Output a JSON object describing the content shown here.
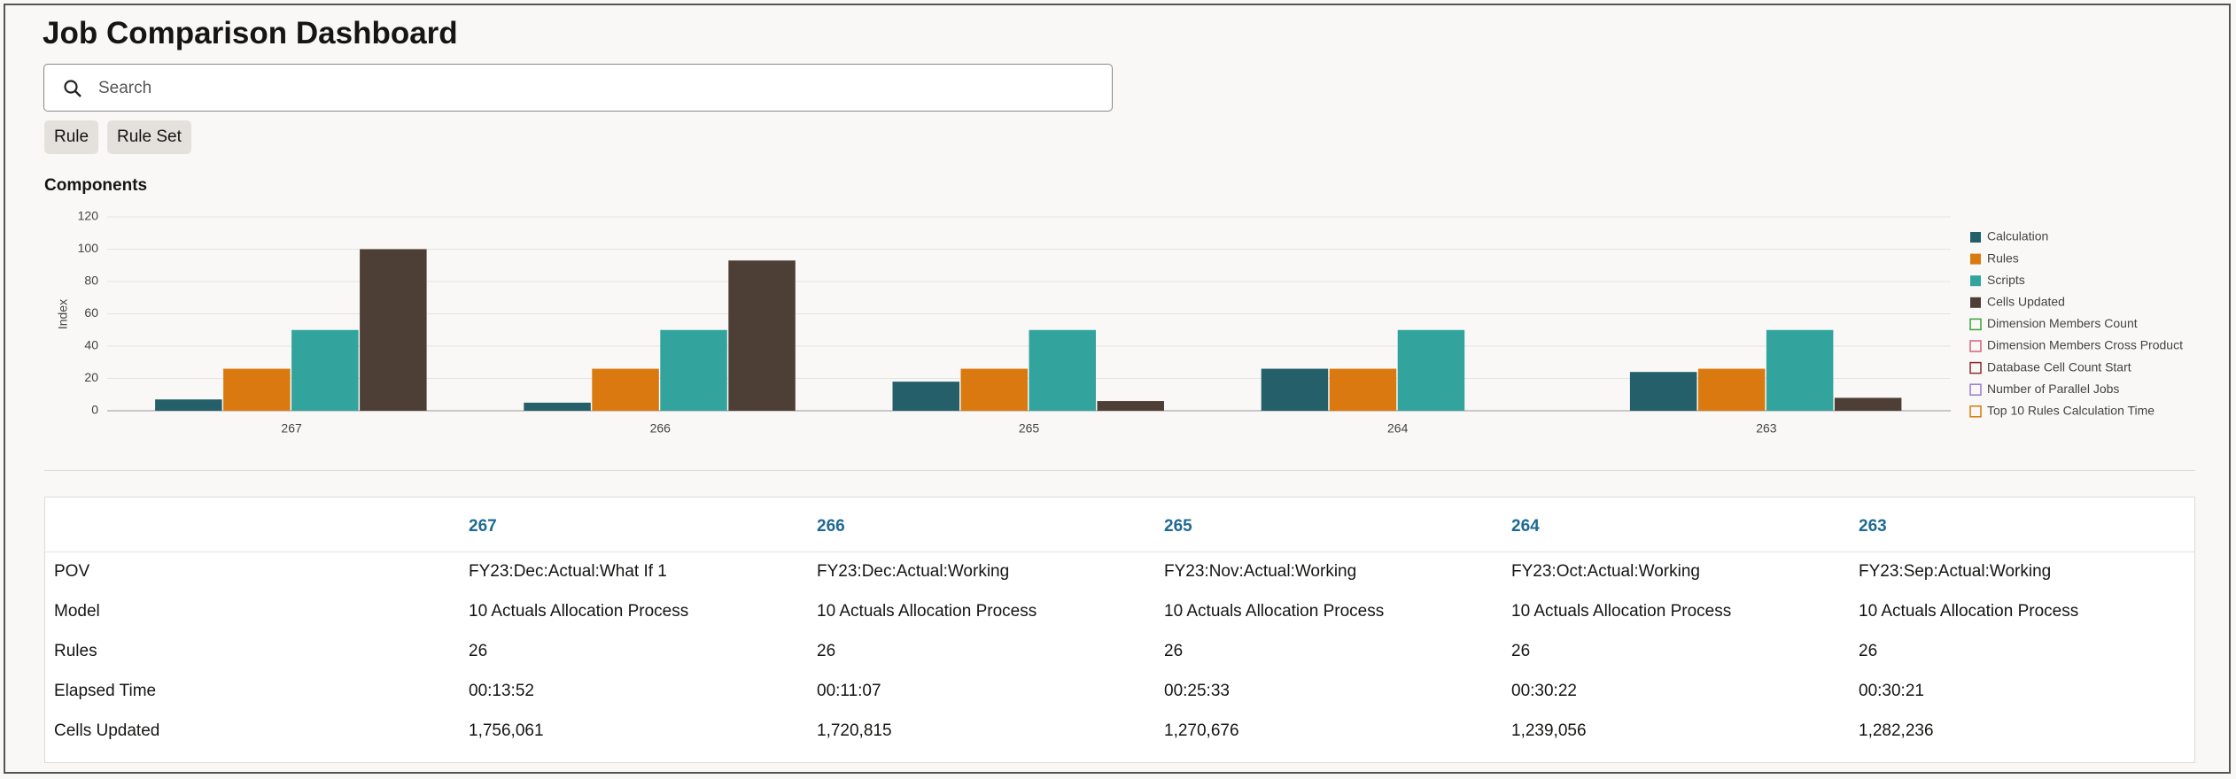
{
  "header": {
    "title": "Job Comparison Dashboard"
  },
  "search": {
    "placeholder": "Search"
  },
  "buttons": [
    "Rule",
    "Rule Set"
  ],
  "chart_data": {
    "type": "bar",
    "title": "Components",
    "y_label": "Index",
    "categories": [
      "267",
      "266",
      "265",
      "264",
      "263"
    ],
    "ylim": [
      0,
      120
    ],
    "yticks": [
      0,
      20,
      40,
      60,
      80,
      100,
      120
    ],
    "grid": true,
    "legend": "right",
    "series": [
      {
        "name": "Calculation",
        "color": "#245f6a",
        "values": [
          7,
          5,
          18,
          26,
          24
        ]
      },
      {
        "name": "Rules",
        "color": "#d9790f",
        "values": [
          26,
          26,
          26,
          26,
          26
        ]
      },
      {
        "name": "Scripts",
        "color": "#33a39e",
        "values": [
          50,
          50,
          50,
          50,
          50
        ]
      },
      {
        "name": "Cells Updated",
        "color": "#4d3f35",
        "values": [
          100,
          93,
          6,
          null,
          8
        ]
      },
      {
        "name": "Dimension Members Count",
        "color": "#3aa33a",
        "values": [
          null,
          null,
          null,
          null,
          null
        ]
      },
      {
        "name": "Dimension Members Cross Product",
        "color": "#d9607a",
        "values": [
          null,
          null,
          null,
          null,
          null
        ]
      },
      {
        "name": "Database Cell Count Start",
        "color": "#8b2c2c",
        "values": [
          null,
          null,
          null,
          null,
          null
        ]
      },
      {
        "name": "Number of Parallel Jobs",
        "color": "#9a7ad0",
        "values": [
          null,
          null,
          null,
          null,
          null
        ]
      },
      {
        "name": "Top 10 Rules Calculation Time",
        "color": "#d9790f",
        "values": [
          null,
          null,
          null,
          null,
          null
        ]
      }
    ]
  },
  "table": {
    "columns": [
      "267",
      "266",
      "265",
      "264",
      "263"
    ],
    "rows": [
      [
        "POV",
        "FY23:Dec:Actual:What If 1",
        "FY23:Dec:Actual:Working",
        "FY23:Nov:Actual:Working",
        "FY23:Oct:Actual:Working",
        "FY23:Sep:Actual:Working"
      ],
      [
        "Model",
        "10 Actuals Allocation Process",
        "10 Actuals Allocation Process",
        "10 Actuals Allocation Process",
        "10 Actuals Allocation Process",
        "10 Actuals Allocation Process"
      ],
      [
        "Rules",
        "26",
        "26",
        "26",
        "26",
        "26"
      ],
      [
        "Elapsed Time",
        "00:13:52",
        "00:11:07",
        "00:25:33",
        "00:30:22",
        "00:30:21"
      ],
      [
        "Cells Updated",
        "1,756,061",
        "1,720,815",
        "1,270,676",
        "1,239,056",
        "1,282,236"
      ]
    ]
  }
}
